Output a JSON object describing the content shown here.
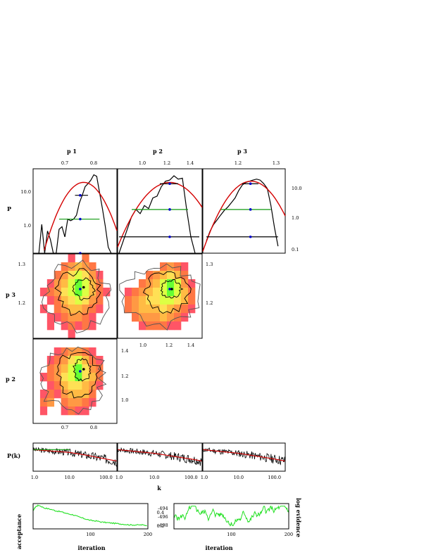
{
  "colors": {
    "line": "#000000",
    "model": "#d40000",
    "interval": "#119911",
    "trace": "#22e022",
    "marker": "#0000cc",
    "heat": [
      "#ee44aa",
      "#ff5566",
      "#ff7744",
      "#ff9944",
      "#ffbb44",
      "#ffe055",
      "#ddff44",
      "#66ff33"
    ]
  },
  "labels": {
    "col": [
      "p 1",
      "p 2",
      "p 3"
    ],
    "row_p": "P",
    "row_p3": "p 3",
    "row_p2": "p 2",
    "pk": "P(k)",
    "k": "k",
    "acceptance": "acceptance",
    "iteration_left": "iteration",
    "iteration_right": "iteration",
    "log_evidence": "log evidence"
  },
  "chart_data": [
    {
      "id": "marginal-p1",
      "type": "line",
      "x_ticks": [
        "0.7",
        "0.8"
      ],
      "y_scale": "log",
      "y_ticks": [
        "10.0",
        "1.0"
      ],
      "x_range": [
        0.6,
        0.89
      ],
      "y_range": [
        0.1,
        30
      ],
      "histogram_x": [
        0.62,
        0.63,
        0.64,
        0.65,
        0.66,
        0.67,
        0.68,
        0.69,
        0.7,
        0.71,
        0.72,
        0.73,
        0.74,
        0.75,
        0.76,
        0.77,
        0.78,
        0.79,
        0.8,
        0.81,
        0.82,
        0.83,
        0.84,
        0.85,
        0.86,
        0.87
      ],
      "histogram_y": [
        0.06,
        0.7,
        0.08,
        0.45,
        0.25,
        0.08,
        0.06,
        0.5,
        0.6,
        0.3,
        1.0,
        0.9,
        1.0,
        1.3,
        3.0,
        5.0,
        9.0,
        11.0,
        14.0,
        20.0,
        18.0,
        6.0,
        2.0,
        0.6,
        0.15,
        0.06
      ],
      "model_center": 0.775,
      "model_sigma": 0.045,
      "model_peak": 12.0,
      "markers": [
        {
          "x": 0.763,
          "y": 5.0
        },
        {
          "x": 0.763,
          "y": 1.0
        },
        {
          "x": 0.763,
          "y": 0.1
        }
      ],
      "intervals": [
        {
          "y": 5.0,
          "x0": 0.745,
          "x1": 0.79,
          "color": "line"
        },
        {
          "y": 1.0,
          "x0": 0.69,
          "x1": 0.83,
          "color": "interval"
        }
      ]
    },
    {
      "id": "marginal-p2",
      "type": "line",
      "x_ticks": [
        "1.0",
        "1.2",
        "1.4"
      ],
      "y_scale": "log",
      "x_range": [
        0.9,
        1.5
      ],
      "y_range": [
        0.06,
        30
      ],
      "histogram_x": [
        0.91,
        0.95,
        1.0,
        1.03,
        1.06,
        1.09,
        1.12,
        1.15,
        1.18,
        1.21,
        1.24,
        1.27,
        1.3,
        1.33,
        1.36,
        1.39,
        1.42,
        1.45
      ],
      "histogram_y": [
        0.06,
        0.2,
        0.9,
        1.5,
        1.1,
        2.0,
        1.6,
        3.5,
        4.0,
        8.0,
        12.0,
        13.0,
        18.0,
        14.0,
        15.0,
        1.5,
        0.2,
        0.06
      ],
      "model_center": 1.27,
      "model_sigma": 0.12,
      "model_peak": 11.0,
      "markers": [
        {
          "x": 1.27,
          "y": 10.0
        },
        {
          "x": 1.27,
          "y": 1.5
        },
        {
          "x": 1.27,
          "y": 0.2
        }
      ],
      "intervals": [
        {
          "y": 10.0,
          "x0": 1.2,
          "x1": 1.33,
          "color": "line"
        },
        {
          "y": 1.5,
          "x0": 1.0,
          "x1": 1.4,
          "color": "interval"
        },
        {
          "y": 0.2,
          "x0": 0.91,
          "x1": 1.48,
          "color": "line"
        }
      ]
    },
    {
      "id": "marginal-p3",
      "type": "line",
      "x_ticks": [
        "1.2",
        "1.3"
      ],
      "y_scale": "log",
      "y_ticks": [
        "10.0",
        "1.0",
        "0.1"
      ],
      "x_range": [
        1.11,
        1.34
      ],
      "y_range": [
        0.06,
        30
      ],
      "histogram_x": [
        1.12,
        1.13,
        1.14,
        1.15,
        1.16,
        1.17,
        1.18,
        1.19,
        1.2,
        1.21,
        1.22,
        1.23,
        1.24,
        1.25,
        1.26,
        1.27,
        1.28,
        1.29,
        1.3,
        1.31,
        1.32
      ],
      "histogram_y": [
        0.15,
        0.3,
        0.5,
        0.7,
        1.0,
        1.4,
        1.8,
        2.5,
        3.5,
        6.0,
        9.0,
        11.0,
        12.0,
        13.0,
        14.0,
        13.0,
        10.0,
        7.0,
        2.0,
        0.4,
        0.1
      ],
      "model_center": 1.245,
      "model_sigma": 0.042,
      "model_peak": 12.0,
      "markers": [
        {
          "x": 1.243,
          "y": 10.0
        },
        {
          "x": 1.243,
          "y": 1.5
        },
        {
          "x": 1.243,
          "y": 0.2
        }
      ],
      "intervals": [
        {
          "y": 10.0,
          "x0": 1.22,
          "x1": 1.265,
          "color": "line"
        },
        {
          "y": 1.5,
          "x0": 1.16,
          "x1": 1.3,
          "color": "interval"
        },
        {
          "y": 0.2,
          "x0": 1.12,
          "x1": 1.32,
          "color": "line"
        }
      ]
    },
    {
      "id": "joint-p1-p3",
      "type": "heatmap",
      "x_range": [
        0.6,
        0.89
      ],
      "y_range": [
        1.1,
        1.34
      ],
      "y_ticks": [
        "1.3",
        "1.2"
      ],
      "grid": {
        "nx": 12,
        "ny": 10
      },
      "levels": [
        [
          0,
          0,
          0,
          0,
          0,
          1,
          0,
          2,
          0,
          0,
          0,
          0
        ],
        [
          0,
          0,
          0,
          0,
          2,
          3,
          4,
          3,
          2,
          0,
          0,
          0
        ],
        [
          0,
          0,
          0,
          2,
          3,
          5,
          6,
          5,
          3,
          1,
          0,
          0
        ],
        [
          0,
          0,
          1,
          3,
          4,
          6,
          7,
          6,
          4,
          2,
          0,
          0
        ],
        [
          0,
          1,
          2,
          3,
          5,
          6,
          7,
          6,
          4,
          2,
          1,
          0
        ],
        [
          0,
          0,
          1,
          2,
          4,
          5,
          6,
          5,
          3,
          2,
          0,
          0
        ],
        [
          0,
          1,
          0,
          2,
          3,
          4,
          4,
          3,
          2,
          1,
          0,
          0
        ],
        [
          0,
          0,
          1,
          1,
          2,
          3,
          3,
          2,
          1,
          0,
          0,
          0
        ],
        [
          0,
          0,
          1,
          0,
          1,
          2,
          1,
          2,
          1,
          0,
          0,
          0
        ],
        [
          0,
          0,
          0,
          0,
          0,
          1,
          0,
          0,
          0,
          0,
          0,
          0
        ]
      ],
      "mode": {
        "x": 0.763,
        "y": 1.24
      },
      "center": {
        "x": 0.775,
        "y": 1.245
      },
      "contours": [
        {
          "cx": 0.775,
          "cy": 1.24,
          "rx": 0.035,
          "ry": 0.028
        },
        {
          "cx": 0.76,
          "cy": 1.23,
          "rx": 0.075,
          "ry": 0.06
        },
        {
          "cx": 0.75,
          "cy": 1.22,
          "rx": 0.11,
          "ry": 0.09
        }
      ]
    },
    {
      "id": "joint-p2-p3",
      "type": "heatmap",
      "x_range": [
        0.9,
        1.5
      ],
      "y_range": [
        1.1,
        1.34
      ],
      "x_ticks": [
        "1.0",
        "1.2",
        "1.4"
      ],
      "y_ticks": [
        "1.3",
        "1.2"
      ],
      "grid": {
        "nx": 12,
        "ny": 10
      },
      "levels": [
        [
          0,
          0,
          0,
          0,
          0,
          0,
          0,
          0,
          0,
          0,
          0,
          0
        ],
        [
          0,
          0,
          0,
          0,
          0,
          0,
          2,
          3,
          2,
          1,
          0,
          0
        ],
        [
          0,
          0,
          0,
          0,
          2,
          3,
          4,
          5,
          4,
          2,
          0,
          0
        ],
        [
          0,
          0,
          0,
          2,
          3,
          4,
          6,
          7,
          6,
          3,
          1,
          0
        ],
        [
          0,
          1,
          2,
          3,
          4,
          5,
          6,
          7,
          6,
          4,
          2,
          0
        ],
        [
          0,
          2,
          3,
          4,
          5,
          5,
          6,
          6,
          5,
          4,
          2,
          0
        ],
        [
          0,
          2,
          3,
          4,
          4,
          4,
          5,
          4,
          3,
          2,
          1,
          0
        ],
        [
          0,
          0,
          2,
          3,
          3,
          3,
          4,
          3,
          2,
          1,
          0,
          0
        ],
        [
          0,
          0,
          0,
          1,
          2,
          2,
          2,
          1,
          1,
          0,
          0,
          0
        ],
        [
          0,
          0,
          0,
          0,
          0,
          0,
          0,
          0,
          0,
          0,
          0,
          0
        ]
      ],
      "mode": {
        "x": 1.27,
        "y": 1.24
      },
      "center": {
        "x": 1.285,
        "y": 1.24
      },
      "contours": [
        {
          "cx": 1.28,
          "cy": 1.24,
          "rx": 0.07,
          "ry": 0.025
        },
        {
          "cx": 1.25,
          "cy": 1.23,
          "rx": 0.15,
          "ry": 0.055
        },
        {
          "cx": 1.2,
          "cy": 1.22,
          "rx": 0.26,
          "ry": 0.085
        }
      ]
    },
    {
      "id": "joint-p1-p2",
      "type": "heatmap",
      "x_range": [
        0.6,
        0.89
      ],
      "y_range": [
        0.9,
        1.5
      ],
      "x_ticks": [
        "0.7",
        "0.8"
      ],
      "y_ticks": [
        "1.4",
        "1.2",
        "1.0"
      ],
      "grid": {
        "nx": 12,
        "ny": 10
      },
      "levels": [
        [
          0,
          0,
          0,
          0,
          0,
          0,
          0,
          0,
          0,
          0,
          0,
          0
        ],
        [
          0,
          0,
          0,
          1,
          2,
          3,
          3,
          2,
          1,
          0,
          0,
          0
        ],
        [
          0,
          0,
          1,
          2,
          3,
          5,
          6,
          4,
          2,
          1,
          0,
          0
        ],
        [
          0,
          0,
          2,
          3,
          4,
          6,
          7,
          5,
          3,
          2,
          0,
          0
        ],
        [
          0,
          1,
          2,
          3,
          5,
          6,
          7,
          5,
          4,
          2,
          0,
          0
        ],
        [
          0,
          0,
          1,
          2,
          4,
          5,
          5,
          4,
          3,
          1,
          0,
          0
        ],
        [
          0,
          1,
          2,
          1,
          3,
          4,
          4,
          4,
          2,
          0,
          0,
          0
        ],
        [
          0,
          2,
          3,
          0,
          2,
          3,
          3,
          2,
          1,
          0,
          0,
          0
        ],
        [
          0,
          1,
          0,
          0,
          1,
          2,
          1,
          1,
          0,
          0,
          0,
          0
        ],
        [
          0,
          0,
          0,
          0,
          0,
          0,
          0,
          0,
          0,
          0,
          0,
          0
        ]
      ],
      "mode": {
        "x": 0.763,
        "y": 1.27
      },
      "center": {
        "x": 0.775,
        "y": 1.285
      },
      "contours": [
        {
          "cx": 0.77,
          "cy": 1.28,
          "rx": 0.03,
          "ry": 0.07
        },
        {
          "cx": 0.755,
          "cy": 1.25,
          "rx": 0.07,
          "ry": 0.15
        },
        {
          "cx": 0.735,
          "cy": 1.22,
          "rx": 0.11,
          "ry": 0.22
        }
      ]
    },
    {
      "id": "power-spectra",
      "type": "line",
      "x_scale": "log",
      "y_scale": "log",
      "x_ticks": [
        "1.0",
        "10.0",
        "100.0"
      ],
      "x_range": [
        1,
        200
      ],
      "y_range": [
        0.01,
        10
      ],
      "panels": [
        {
          "model": [
            [
              1,
              2.0
            ],
            [
              10,
              1.0
            ],
            [
              30,
              0.5
            ],
            [
              100,
              0.2
            ],
            [
              200,
              0.12
            ]
          ],
          "flat": [
            [
              1,
              2.0
            ],
            [
              10,
              2.0
            ]
          ],
          "noise_seed": 3
        },
        {
          "model": [
            [
              1,
              2.0
            ],
            [
              10,
              0.8
            ],
            [
              100,
              0.2
            ],
            [
              200,
              0.12
            ]
          ],
          "noise_seed": 7
        },
        {
          "model": [
            [
              1,
              2.0
            ],
            [
              10,
              0.8
            ],
            [
              100,
              0.2
            ],
            [
              200,
              0.12
            ]
          ],
          "noise_seed": 11
        }
      ]
    },
    {
      "id": "acceptance-trace",
      "type": "line",
      "x_ticks": [
        "100",
        "200"
      ],
      "y_ticks": [
        "0.4",
        "0.2"
      ],
      "x_range": [
        0,
        200
      ],
      "y_range": [
        0.15,
        0.6
      ],
      "points": [
        [
          0,
          0.48
        ],
        [
          5,
          0.55
        ],
        [
          10,
          0.57
        ],
        [
          20,
          0.52
        ],
        [
          30,
          0.5
        ],
        [
          40,
          0.47
        ],
        [
          50,
          0.45
        ],
        [
          60,
          0.42
        ],
        [
          70,
          0.4
        ],
        [
          80,
          0.36
        ],
        [
          90,
          0.33
        ],
        [
          100,
          0.3
        ],
        [
          110,
          0.29
        ],
        [
          120,
          0.27
        ],
        [
          130,
          0.26
        ],
        [
          140,
          0.25
        ],
        [
          150,
          0.24
        ],
        [
          160,
          0.23
        ],
        [
          170,
          0.22
        ],
        [
          180,
          0.22
        ],
        [
          190,
          0.22
        ],
        [
          200,
          0.21
        ]
      ]
    },
    {
      "id": "log-evidence-trace",
      "type": "line",
      "x_ticks": [
        "100",
        "200"
      ],
      "y_ticks": [
        "-494",
        "-496",
        "-498"
      ],
      "x_range": [
        0,
        200
      ],
      "y_range": [
        -499,
        -493
      ],
      "seed": 5
    }
  ]
}
